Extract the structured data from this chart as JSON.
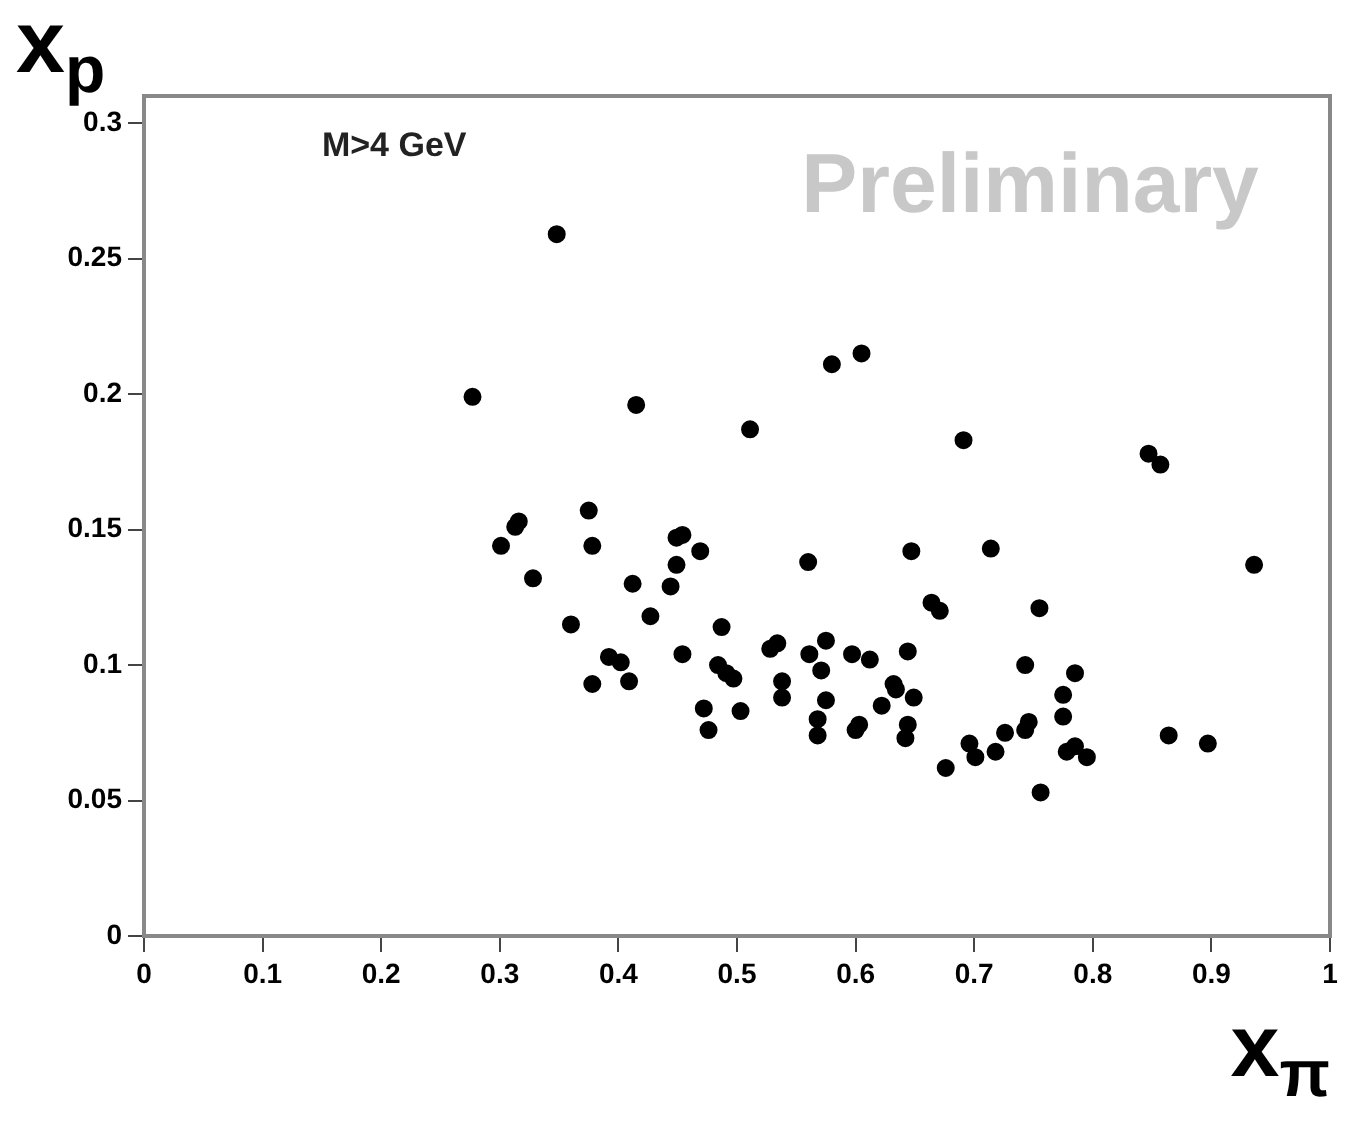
{
  "chart_data": {
    "type": "scatter",
    "xlabel": "x$_{π}$",
    "ylabel": "x$_{p}$",
    "annotations": [
      "M>4 GeV",
      "Preliminary"
    ],
    "marker": "circle",
    "grid": false,
    "legend": false,
    "xlim": [
      0,
      1
    ],
    "xticks": [
      0,
      0.1,
      0.2,
      0.3,
      0.4,
      0.5,
      0.6,
      0.7,
      0.8,
      0.9,
      1
    ],
    "ylim": [
      0,
      0.31
    ],
    "yticks": [
      0,
      0.05,
      0.1,
      0.15,
      0.2,
      0.25,
      0.3
    ],
    "series": [
      {
        "color": "#000000",
        "x": [
          0.277,
          0.348,
          0.415,
          0.511,
          0.58,
          0.605,
          0.691,
          0.847,
          0.857,
          0.647,
          0.714,
          0.936,
          0.664,
          0.671,
          0.755,
          0.644,
          0.632,
          0.634,
          0.622,
          0.649,
          0.644,
          0.642,
          0.743,
          0.785,
          0.775,
          0.775,
          0.746,
          0.743,
          0.726,
          0.696,
          0.701,
          0.718,
          0.676,
          0.778,
          0.785,
          0.795,
          0.756,
          0.864,
          0.897,
          0.316,
          0.313,
          0.301,
          0.375,
          0.378,
          0.328,
          0.449,
          0.454,
          0.469,
          0.449,
          0.412,
          0.444,
          0.56,
          0.36,
          0.427,
          0.487,
          0.392,
          0.402,
          0.378,
          0.409,
          0.454,
          0.484,
          0.491,
          0.497,
          0.472,
          0.476,
          0.503,
          0.528,
          0.534,
          0.538,
          0.538,
          0.561,
          0.575,
          0.571,
          0.597,
          0.612,
          0.575,
          0.568,
          0.568,
          0.603,
          0.6
        ],
        "values": [
          0.199,
          0.259,
          0.196,
          0.187,
          0.211,
          0.215,
          0.183,
          0.178,
          0.174,
          0.142,
          0.143,
          0.137,
          0.123,
          0.12,
          0.121,
          0.105,
          0.093,
          0.091,
          0.085,
          0.088,
          0.078,
          0.073,
          0.1,
          0.097,
          0.089,
          0.081,
          0.079,
          0.076,
          0.075,
          0.071,
          0.066,
          0.068,
          0.062,
          0.068,
          0.07,
          0.066,
          0.053,
          0.074,
          0.071,
          0.153,
          0.151,
          0.144,
          0.157,
          0.144,
          0.132,
          0.147,
          0.148,
          0.142,
          0.137,
          0.13,
          0.129,
          0.138,
          0.115,
          0.118,
          0.114,
          0.103,
          0.101,
          0.093,
          0.094,
          0.104,
          0.1,
          0.097,
          0.095,
          0.084,
          0.076,
          0.083,
          0.106,
          0.108,
          0.094,
          0.088,
          0.104,
          0.109,
          0.098,
          0.104,
          0.102,
          0.087,
          0.08,
          0.074,
          0.078,
          0.076
        ]
      }
    ]
  }
}
